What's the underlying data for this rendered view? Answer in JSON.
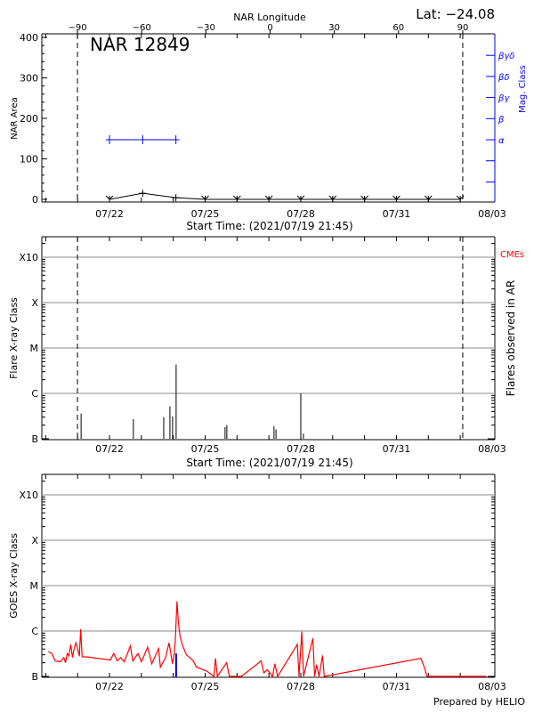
{
  "colors": {
    "axis": "#000000",
    "grid": "#a0a0a0",
    "magnetic_class": "#0000ff",
    "goes_flux": "#ff0000",
    "flare_highlight": "#0000ff",
    "cme_label": "#ff0000"
  },
  "header": {
    "latitude": "Lat: −24.08"
  },
  "footer": {
    "credit": "Prepared by HELIO"
  },
  "chart_data": [
    {
      "type": "line",
      "title": "NAR 12849",
      "ylabel": "NAR Area",
      "ylabel_right": "Mag. Class",
      "xlabel": "Start Time: (2021/07/19 21:45)",
      "xlabel_top": "NAR Longitude",
      "ylim": [
        0,
        400
      ],
      "yticks": [
        "0",
        "100",
        "200",
        "300",
        "400"
      ],
      "xticks": [
        {
          "date": "2021-07-22 00:00",
          "label": "07/22"
        },
        {
          "date": "2021-07-25 00:00",
          "label": "07/25"
        },
        {
          "date": "2021-07-28 00:00",
          "label": "07/28"
        },
        {
          "date": "2021-07-31 00:00",
          "label": "07/31"
        },
        {
          "date": "2021-08-03 00:00",
          "label": "08/03"
        }
      ],
      "top_ticks": [
        -90,
        -60,
        -30,
        0,
        30,
        60,
        90
      ],
      "limb_markers_longitude": [
        -90,
        90
      ],
      "mag_class_ticks": [
        "α",
        "β",
        "βγ",
        "βδ",
        "βγδ"
      ],
      "area_series": [
        {
          "date": "2021-07-22 00:00",
          "value": 0
        },
        {
          "date": "2021-07-23 01:00",
          "value": 15
        },
        {
          "date": "2021-07-24 02:00",
          "value": 4
        },
        {
          "date": "2021-07-25 00:00",
          "value": 0
        },
        {
          "date": "2021-07-26 00:00",
          "value": 0
        },
        {
          "date": "2021-07-27 00:00",
          "value": 0
        },
        {
          "date": "2021-07-28 00:00",
          "value": 0
        },
        {
          "date": "2021-07-29 00:00",
          "value": 0
        },
        {
          "date": "2021-07-30 00:00",
          "value": 0
        },
        {
          "date": "2021-07-31 00:00",
          "value": 0
        },
        {
          "date": "2021-08-01 00:00",
          "value": 0
        },
        {
          "date": "2021-08-02 00:00",
          "value": 0
        }
      ],
      "mag_class_series": [
        {
          "date": "2021-07-22 00:00",
          "class": "α"
        },
        {
          "date": "2021-07-23 01:00",
          "class": "α"
        },
        {
          "date": "2021-07-24 02:00",
          "class": "α"
        }
      ]
    },
    {
      "type": "bar",
      "ylabel": "Flare X-ray Class",
      "ylabel_right": "Flares observed in AR",
      "legend_right": "CMEs",
      "xlabel": "Start Time: (2021/07/19 21:45)",
      "yscale": "log",
      "yticks": [
        "B",
        "C",
        "M",
        "X",
        "X10"
      ],
      "grid": true,
      "flares": [
        {
          "date": "2021-07-21 02:40",
          "class": "B3.6"
        },
        {
          "date": "2021-07-22 18:00",
          "class": "B2.7"
        },
        {
          "date": "2021-07-23 16:50",
          "class": "B3.0"
        },
        {
          "date": "2021-07-23 21:30",
          "class": "B5.2"
        },
        {
          "date": "2021-07-23 23:30",
          "class": "B3.1"
        },
        {
          "date": "2021-07-24 02:10",
          "class": "C4.3"
        },
        {
          "date": "2021-07-25 15:00",
          "class": "B1.8"
        },
        {
          "date": "2021-07-25 16:20",
          "class": "B2.0"
        },
        {
          "date": "2021-07-27 03:50",
          "class": "B1.9"
        },
        {
          "date": "2021-07-27 05:20",
          "class": "B1.6"
        },
        {
          "date": "2021-07-28 00:00",
          "class": "C1.0"
        },
        {
          "date": "2021-07-28 02:00",
          "class": "B1.3"
        }
      ]
    },
    {
      "type": "line",
      "ylabel": "GOES X-ray Class",
      "yscale": "log",
      "yticks": [
        "B",
        "C",
        "M",
        "X",
        "X10"
      ],
      "grid": true,
      "flux_unit_W_m2": true,
      "series": [
        [
          "2021-07-20 02:00",
          3.5e-07
        ],
        [
          "2021-07-20 04:35",
          3.2e-07
        ],
        [
          "2021-07-20 07:10",
          2.2e-07
        ],
        [
          "2021-07-20 11:00",
          2.1e-07
        ],
        [
          "2021-07-20 13:40",
          2.6e-07
        ],
        [
          "2021-07-20 14:55",
          2e-07
        ],
        [
          "2021-07-20 16:15",
          3.2e-07
        ],
        [
          "2021-07-20 17:30",
          2.8e-07
        ],
        [
          "2021-07-20 18:50",
          5.1e-07
        ],
        [
          "2021-07-20 20:10",
          2.6e-07
        ],
        [
          "2021-07-20 21:25",
          4.1e-07
        ],
        [
          "2021-07-20 22:45",
          5.5e-07
        ],
        [
          "2021-07-21 00:00",
          4.1e-07
        ],
        [
          "2021-07-21 01:20",
          2.8e-07
        ],
        [
          "2021-07-21 02:20",
          1.1e-06
        ],
        [
          "2021-07-21 03:25",
          2.7e-07
        ],
        [
          "2021-07-21 06:30",
          2.7e-07
        ],
        [
          "2021-07-22 00:40",
          2.3e-07
        ],
        [
          "2021-07-22 03:15",
          3.2e-07
        ],
        [
          "2021-07-22 05:55",
          2.2e-07
        ],
        [
          "2021-07-22 08:30",
          2.6e-07
        ],
        [
          "2021-07-22 11:05",
          2.1e-07
        ],
        [
          "2021-07-22 15:45",
          4.7e-07
        ],
        [
          "2021-07-22 17:35",
          2.2e-07
        ],
        [
          "2021-07-22 21:27",
          3.2e-07
        ],
        [
          "2021-07-23 00:05",
          2.1e-07
        ],
        [
          "2021-07-23 04:45",
          4.4e-07
        ],
        [
          "2021-07-23 07:50",
          1.9e-07
        ],
        [
          "2021-07-23 13:00",
          4.1e-07
        ],
        [
          "2021-07-23 14:20",
          1.6e-07
        ],
        [
          "2021-07-23 18:15",
          2.6e-07
        ],
        [
          "2021-07-23 20:50",
          5.5e-07
        ],
        [
          "2021-07-23 23:25",
          1.9e-07
        ],
        [
          "2021-07-24 00:45",
          3.2e-07
        ],
        [
          "2021-07-24 01:30",
          5.9e-07
        ],
        [
          "2021-07-24 02:50",
          4.5e-06
        ],
        [
          "2021-07-24 03:50",
          1.6e-06
        ],
        [
          "2021-07-24 05:10",
          7.4e-07
        ],
        [
          "2021-07-24 07:10",
          4.7e-07
        ],
        [
          "2021-07-24 09:50",
          3e-07
        ],
        [
          "2021-07-24 12:25",
          2.6e-07
        ],
        [
          "2021-07-24 15:00",
          2.2e-07
        ],
        [
          "2021-07-24 17:35",
          1.6e-07
        ],
        [
          "2021-07-24 20:10",
          1.5e-07
        ],
        [
          "2021-07-25 01:25",
          1.3e-07
        ],
        [
          "2021-07-25 06:35",
          1e-07
        ],
        [
          "2021-07-25 07:50",
          2.5e-07
        ],
        [
          "2021-07-25 09:10",
          1e-07
        ],
        [
          "2021-07-25 16:10",
          2e-07
        ],
        [
          "2021-07-25 18:15",
          1e-07
        ],
        [
          "2021-07-26 03:20",
          1e-07
        ],
        [
          "2021-07-26 18:10",
          2.2e-07
        ],
        [
          "2021-07-26 20:10",
          1.2e-07
        ],
        [
          "2021-07-26 22:50",
          1.4e-07
        ],
        [
          "2021-07-27 02:45",
          1e-07
        ],
        [
          "2021-07-27 04:30",
          1.9e-07
        ],
        [
          "2021-07-27 06:35",
          1e-07
        ],
        [
          "2021-07-27 21:25",
          5.1e-07
        ],
        [
          "2021-07-27 22:40",
          1e-07
        ],
        [
          "2021-07-28 00:45",
          9.7e-07
        ],
        [
          "2021-07-28 02:05",
          1e-07
        ],
        [
          "2021-07-28 09:05",
          6.9e-07
        ],
        [
          "2021-07-28 10:25",
          1e-07
        ],
        [
          "2021-07-28 11:55",
          1.8e-07
        ],
        [
          "2021-07-28 13:45",
          1e-07
        ],
        [
          "2021-07-28 16:20",
          2.9e-07
        ],
        [
          "2021-07-28 17:40",
          1e-07
        ],
        [
          "2021-07-31 18:22",
          2.5e-07
        ],
        [
          "2021-07-31 20:57",
          1.6e-07
        ],
        [
          "2021-07-31 23:00",
          1e-07
        ],
        [
          "2021-08-02 19:40",
          1e-07
        ]
      ],
      "highlight": {
        "date": "2021-07-24 02:10",
        "flux": 3.2e-07
      }
    }
  ]
}
